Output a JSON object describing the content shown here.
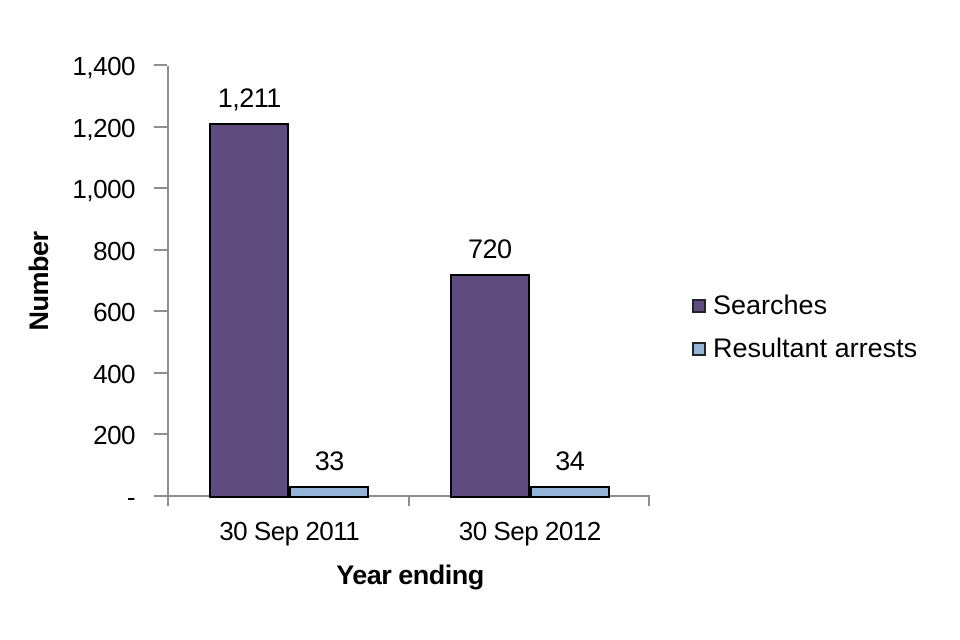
{
  "chart_data": {
    "type": "bar",
    "title": "",
    "xlabel": "Year ending",
    "ylabel": "Number",
    "categories": [
      "30 Sep 2011",
      "30 Sep 2012"
    ],
    "series": [
      {
        "name": "Searches",
        "color": "#5E4C7E",
        "values": [
          1211,
          720
        ],
        "labels": [
          "1,211",
          "720"
        ]
      },
      {
        "name": "Resultant arrests",
        "color": "#95B3D7",
        "values": [
          33,
          34
        ],
        "labels": [
          "33",
          "34"
        ]
      }
    ],
    "ylim": [
      0,
      1400
    ],
    "yticks": [
      {
        "value": 1400,
        "label": "1,400"
      },
      {
        "value": 1200,
        "label": "1,200"
      },
      {
        "value": 1000,
        "label": "1,000"
      },
      {
        "value": 800,
        "label": "800"
      },
      {
        "value": 600,
        "label": "600"
      },
      {
        "value": 400,
        "label": "400"
      },
      {
        "value": 200,
        "label": "200"
      },
      {
        "value": 0,
        "label": "-"
      }
    ],
    "grid": false,
    "legend_position": "right",
    "axis_color": "#8e8e8e",
    "bar_border_color": "#000000"
  }
}
